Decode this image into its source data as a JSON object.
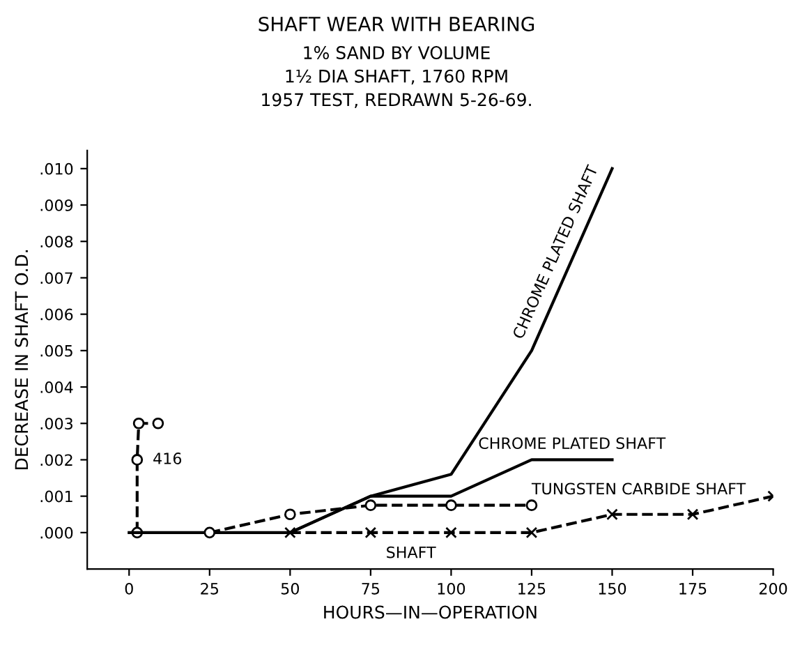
{
  "chart_data": {
    "type": "line",
    "title": "SHAFT WEAR WITH BEARING",
    "subtitle": "1% SAND BY VOLUME\n1½ DIA SHAFT, 1760 RPM\n1957 TEST, REDRAWN 5-26-69.",
    "xlabel": "HOURS—IN—OPERATION",
    "ylabel": "DECREASE IN SHAFT O.D.",
    "series": [
      {
        "name": "416",
        "color": "#000000",
        "marker": "circle",
        "line_style": "dashed",
        "x": [
          2.5,
          2.5,
          3,
          9
        ],
        "values": [
          0,
          0.002,
          0.003,
          0.003
        ]
      },
      {
        "name": "CHROME PLATED SHAFT",
        "color": "#000000",
        "marker": "none",
        "line_style": "solid",
        "x": [
          0,
          25,
          50,
          75,
          100,
          125,
          150
        ],
        "values": [
          0,
          0,
          0,
          0.001,
          0.0016,
          0.005,
          0.01
        ]
      },
      {
        "name": "CHROME PLATED SHAFT",
        "color": "#000000",
        "marker": "none",
        "line_style": "solid",
        "x": [
          50,
          75,
          100,
          125,
          150
        ],
        "values": [
          0,
          0.001,
          0.001,
          0.002,
          0.002
        ]
      },
      {
        "name": "TUNGSTEN CARBIDE SHAFT",
        "color": "#000000",
        "marker": "circle",
        "line_style": "dashed",
        "x": [
          25,
          50,
          75,
          100,
          125
        ],
        "values": [
          0,
          0.0005,
          0.00075,
          0.00075,
          0.00075
        ]
      },
      {
        "name": "SHAFT",
        "color": "#000000",
        "marker": "cross",
        "line_style": "dashed",
        "x": [
          50,
          75,
          100,
          125,
          150,
          175,
          200
        ],
        "values": [
          0,
          0,
          0,
          0,
          0.0005,
          0.0005,
          0.001
        ]
      }
    ],
    "xlim": [
      -13,
      200
    ],
    "xticks": [
      0,
      25,
      50,
      75,
      100,
      125,
      150,
      175,
      200
    ],
    "ylim": [
      -0.001,
      0.0105
    ],
    "yticks": [
      {
        "value": 0,
        "label": ".000"
      },
      {
        "value": 0.001,
        "label": ".001"
      },
      {
        "value": 0.002,
        "label": ".002"
      },
      {
        "value": 0.003,
        "label": ".003"
      },
      {
        "value": 0.004,
        "label": ".004"
      },
      {
        "value": 0.005,
        "label": ".005"
      },
      {
        "value": 0.006,
        "label": ".006"
      },
      {
        "value": 0.007,
        "label": ".007"
      },
      {
        "value": 0.008,
        "label": ".008"
      },
      {
        "value": 0.009,
        "label": ".009"
      },
      {
        "value": 0.01,
        "label": ".010"
      }
    ],
    "grid": false,
    "legend": false
  }
}
